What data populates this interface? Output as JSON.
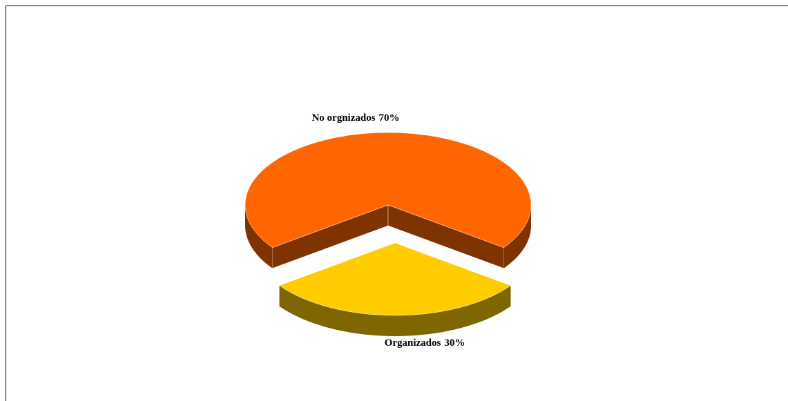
{
  "chart_data": {
    "type": "pie3d",
    "categories": [
      "No orgnizados",
      "Organizados"
    ],
    "values": [
      70,
      30
    ],
    "value_labels": [
      "70%",
      "30%"
    ],
    "colors": [
      "#FF6600",
      "#FFCC00"
    ]
  }
}
